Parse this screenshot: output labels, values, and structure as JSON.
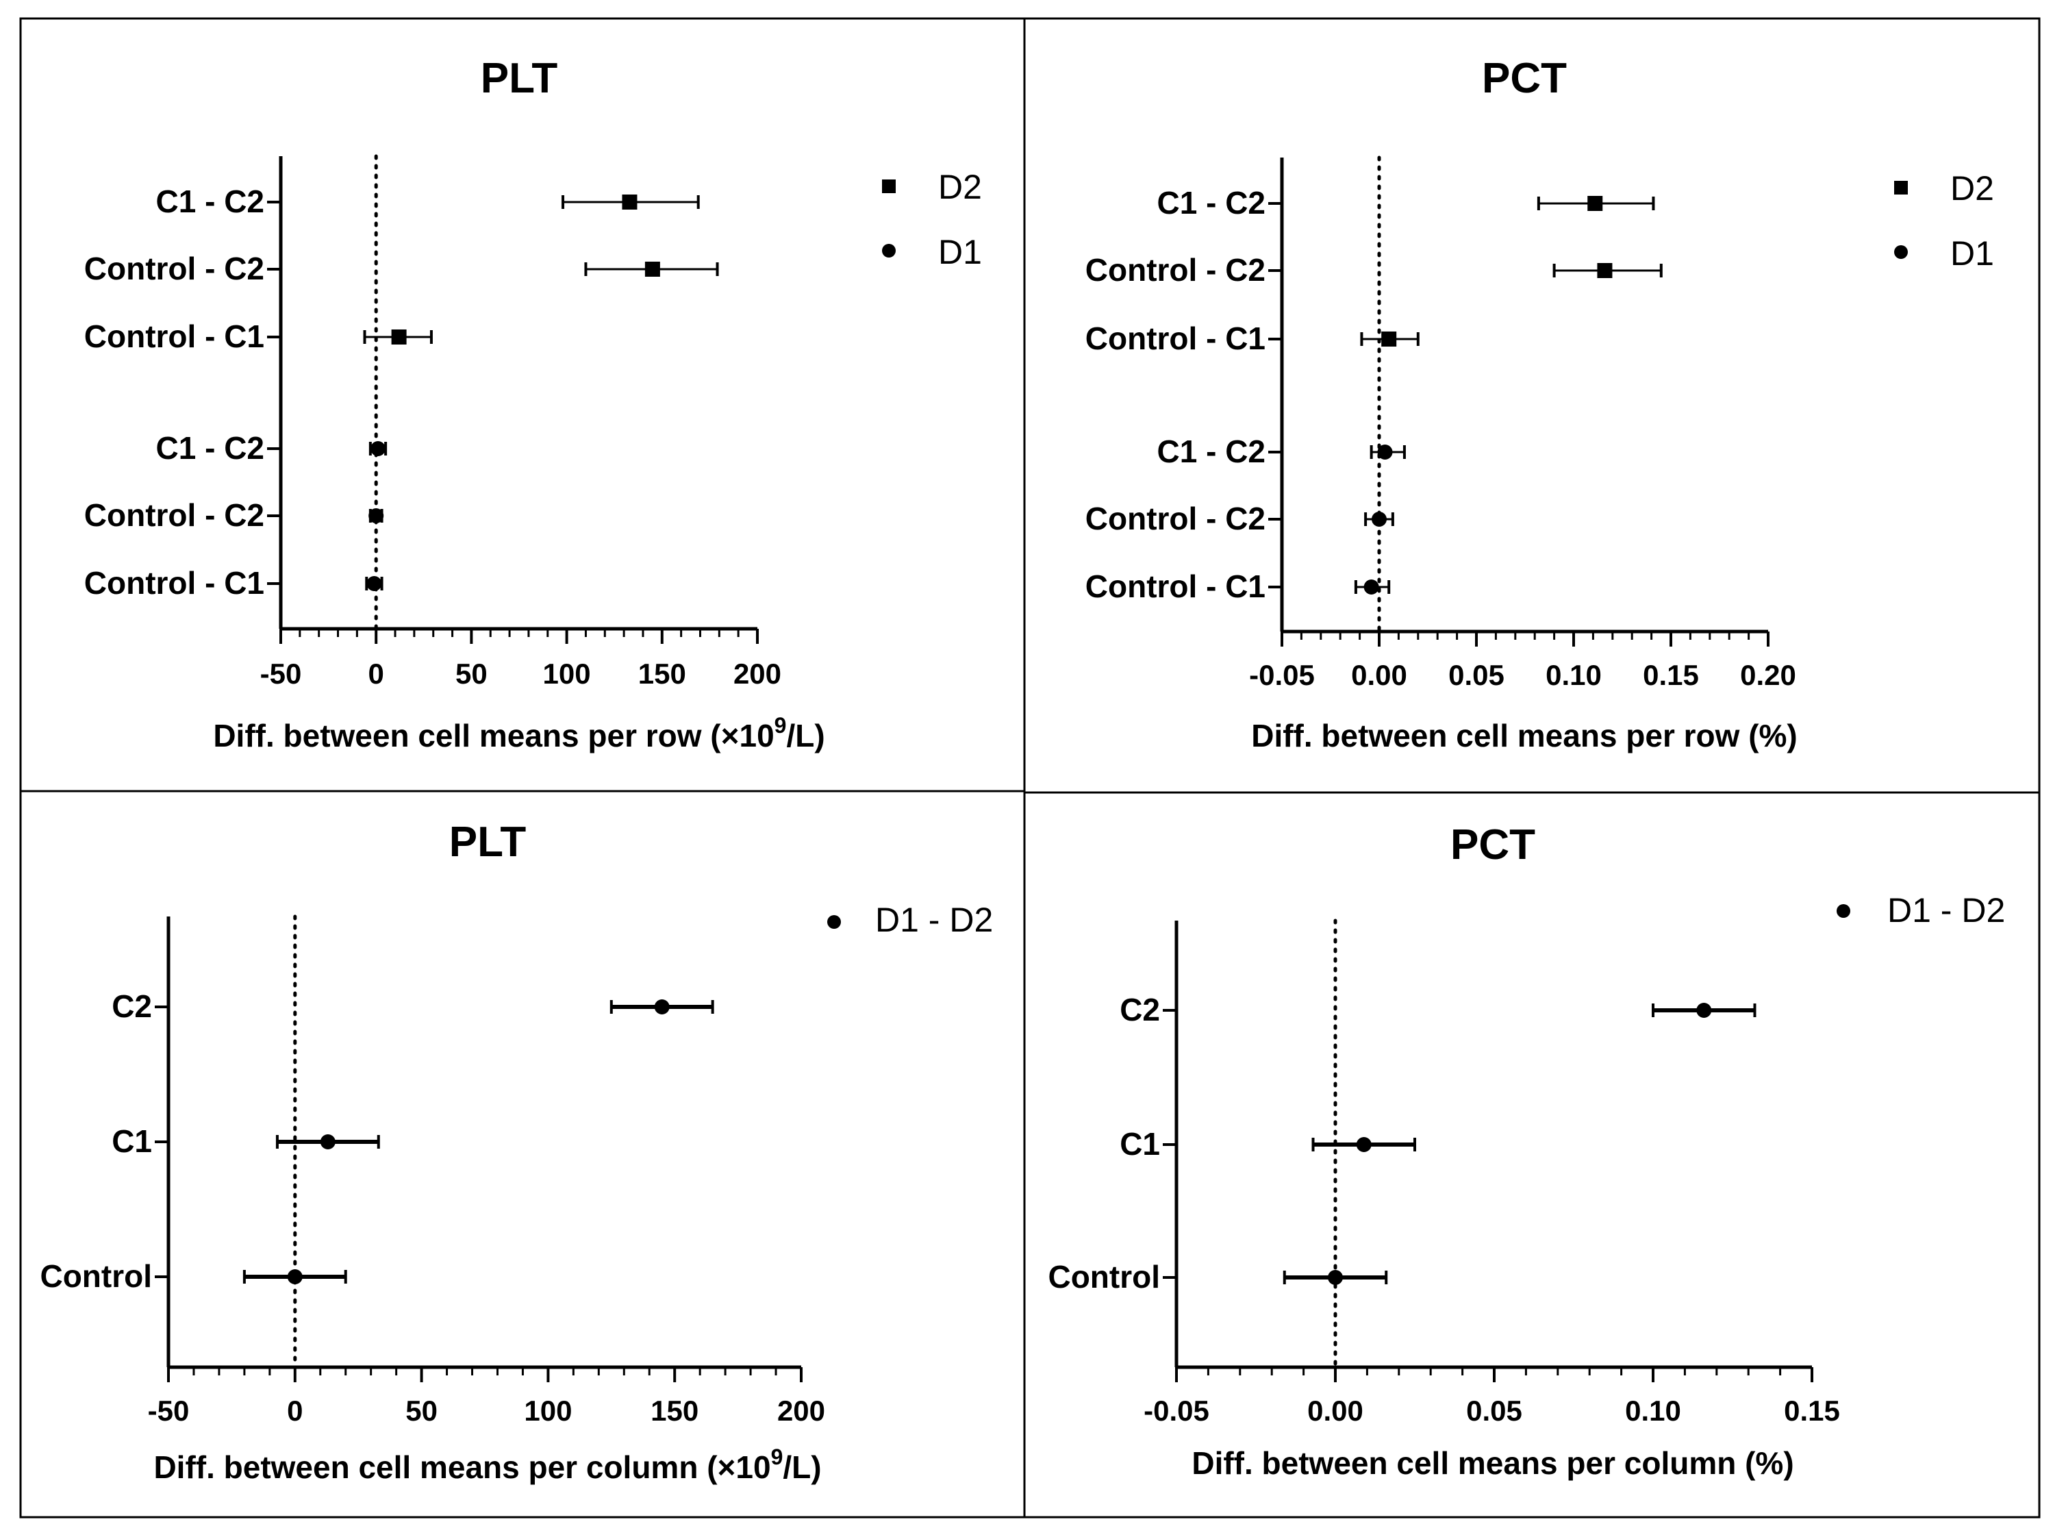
{
  "chart_data": [
    {
      "type": "scatter",
      "title": "PLT",
      "xlabel_prefix": "Diff. between cell means per row (",
      "xlabel_unit_pre": "×10",
      "xlabel_sup": "9",
      "xlabel_unit_post": "/L)",
      "xlim": [
        -50,
        200
      ],
      "xticks": [
        -50,
        0,
        50,
        100,
        150,
        200
      ],
      "xtick_labels": [
        "-50",
        "0",
        "50",
        "100",
        "150",
        "200"
      ],
      "minor_step": 10,
      "rows": [
        {
          "label": "C1 - C2",
          "series": "D2",
          "mean": 133,
          "low": 98,
          "high": 169
        },
        {
          "label": "Control - C2",
          "series": "D2",
          "mean": 145,
          "low": 110,
          "high": 179
        },
        {
          "label": "Control - C1",
          "series": "D2",
          "mean": 12,
          "low": -6,
          "high": 29
        },
        {
          "label": "C1 - C2",
          "series": "D1",
          "mean": 1,
          "low": -3,
          "high": 5
        },
        {
          "label": "Control - C2",
          "series": "D1",
          "mean": 0,
          "low": -3,
          "high": 3
        },
        {
          "label": "Control - C1",
          "series": "D1",
          "mean": -1,
          "low": -5,
          "high": 3
        }
      ],
      "legend": [
        {
          "name": "D2",
          "marker": "square"
        },
        {
          "name": "D1",
          "marker": "circle"
        }
      ]
    },
    {
      "type": "scatter",
      "title": "PCT",
      "xlabel": "Diff. between cell means per row (%)",
      "xlim": [
        -0.05,
        0.2
      ],
      "xticks": [
        -0.05,
        0,
        0.05,
        0.1,
        0.15,
        0.2
      ],
      "xtick_labels": [
        "-0.05",
        "0.00",
        "0.05",
        "0.10",
        "0.15",
        "0.20"
      ],
      "minor_step": 0.01,
      "rows": [
        {
          "label": "C1 - C2",
          "series": "D2",
          "mean": 0.111,
          "low": 0.082,
          "high": 0.141
        },
        {
          "label": "Control - C2",
          "series": "D2",
          "mean": 0.116,
          "low": 0.09,
          "high": 0.145
        },
        {
          "label": "Control - C1",
          "series": "D2",
          "mean": 0.005,
          "low": -0.009,
          "high": 0.02
        },
        {
          "label": "C1 - C2",
          "series": "D1",
          "mean": 0.003,
          "low": -0.004,
          "high": 0.013
        },
        {
          "label": "Control - C2",
          "series": "D1",
          "mean": 0.0,
          "low": -0.007,
          "high": 0.007
        },
        {
          "label": "Control - C1",
          "series": "D1",
          "mean": -0.004,
          "low": -0.012,
          "high": 0.005
        }
      ],
      "legend": [
        {
          "name": "D2",
          "marker": "square"
        },
        {
          "name": "D1",
          "marker": "circle"
        }
      ]
    },
    {
      "type": "scatter",
      "title": "PLT",
      "xlabel_prefix": "Diff. between cell means per column (",
      "xlabel_unit_pre": "×10",
      "xlabel_sup": "9",
      "xlabel_unit_post": "/L)",
      "xlim": [
        -50,
        200
      ],
      "xticks": [
        -50,
        0,
        50,
        100,
        150,
        200
      ],
      "xtick_labels": [
        "-50",
        "0",
        "50",
        "100",
        "150",
        "200"
      ],
      "minor_step": 10,
      "rows": [
        {
          "label": "C2",
          "series": "D1 - D2",
          "mean": 145,
          "low": 125,
          "high": 165
        },
        {
          "label": "C1",
          "series": "D1 - D2",
          "mean": 13,
          "low": -7,
          "high": 33
        },
        {
          "label": "Control",
          "series": "D1 - D2",
          "mean": 0,
          "low": -20,
          "high": 20
        }
      ],
      "legend": [
        {
          "name": "D1 - D2",
          "marker": "circle"
        }
      ]
    },
    {
      "type": "scatter",
      "title": "PCT",
      "xlabel": "Diff. between cell means per column (%)",
      "xlim": [
        -0.05,
        0.15
      ],
      "xticks": [
        -0.05,
        0,
        0.05,
        0.1,
        0.15
      ],
      "xtick_labels": [
        "-0.05",
        "0.00",
        "0.05",
        "0.10",
        "0.15"
      ],
      "minor_step": 0.01,
      "rows": [
        {
          "label": "C2",
          "series": "D1 - D2",
          "mean": 0.116,
          "low": 0.1,
          "high": 0.132
        },
        {
          "label": "C1",
          "series": "D1 - D2",
          "mean": 0.009,
          "low": -0.007,
          "high": 0.025
        },
        {
          "label": "Control",
          "series": "D1 - D2",
          "mean": 0.0,
          "low": -0.016,
          "high": 0.016
        }
      ],
      "legend": [
        {
          "name": "D1 - D2",
          "marker": "circle"
        }
      ]
    }
  ]
}
